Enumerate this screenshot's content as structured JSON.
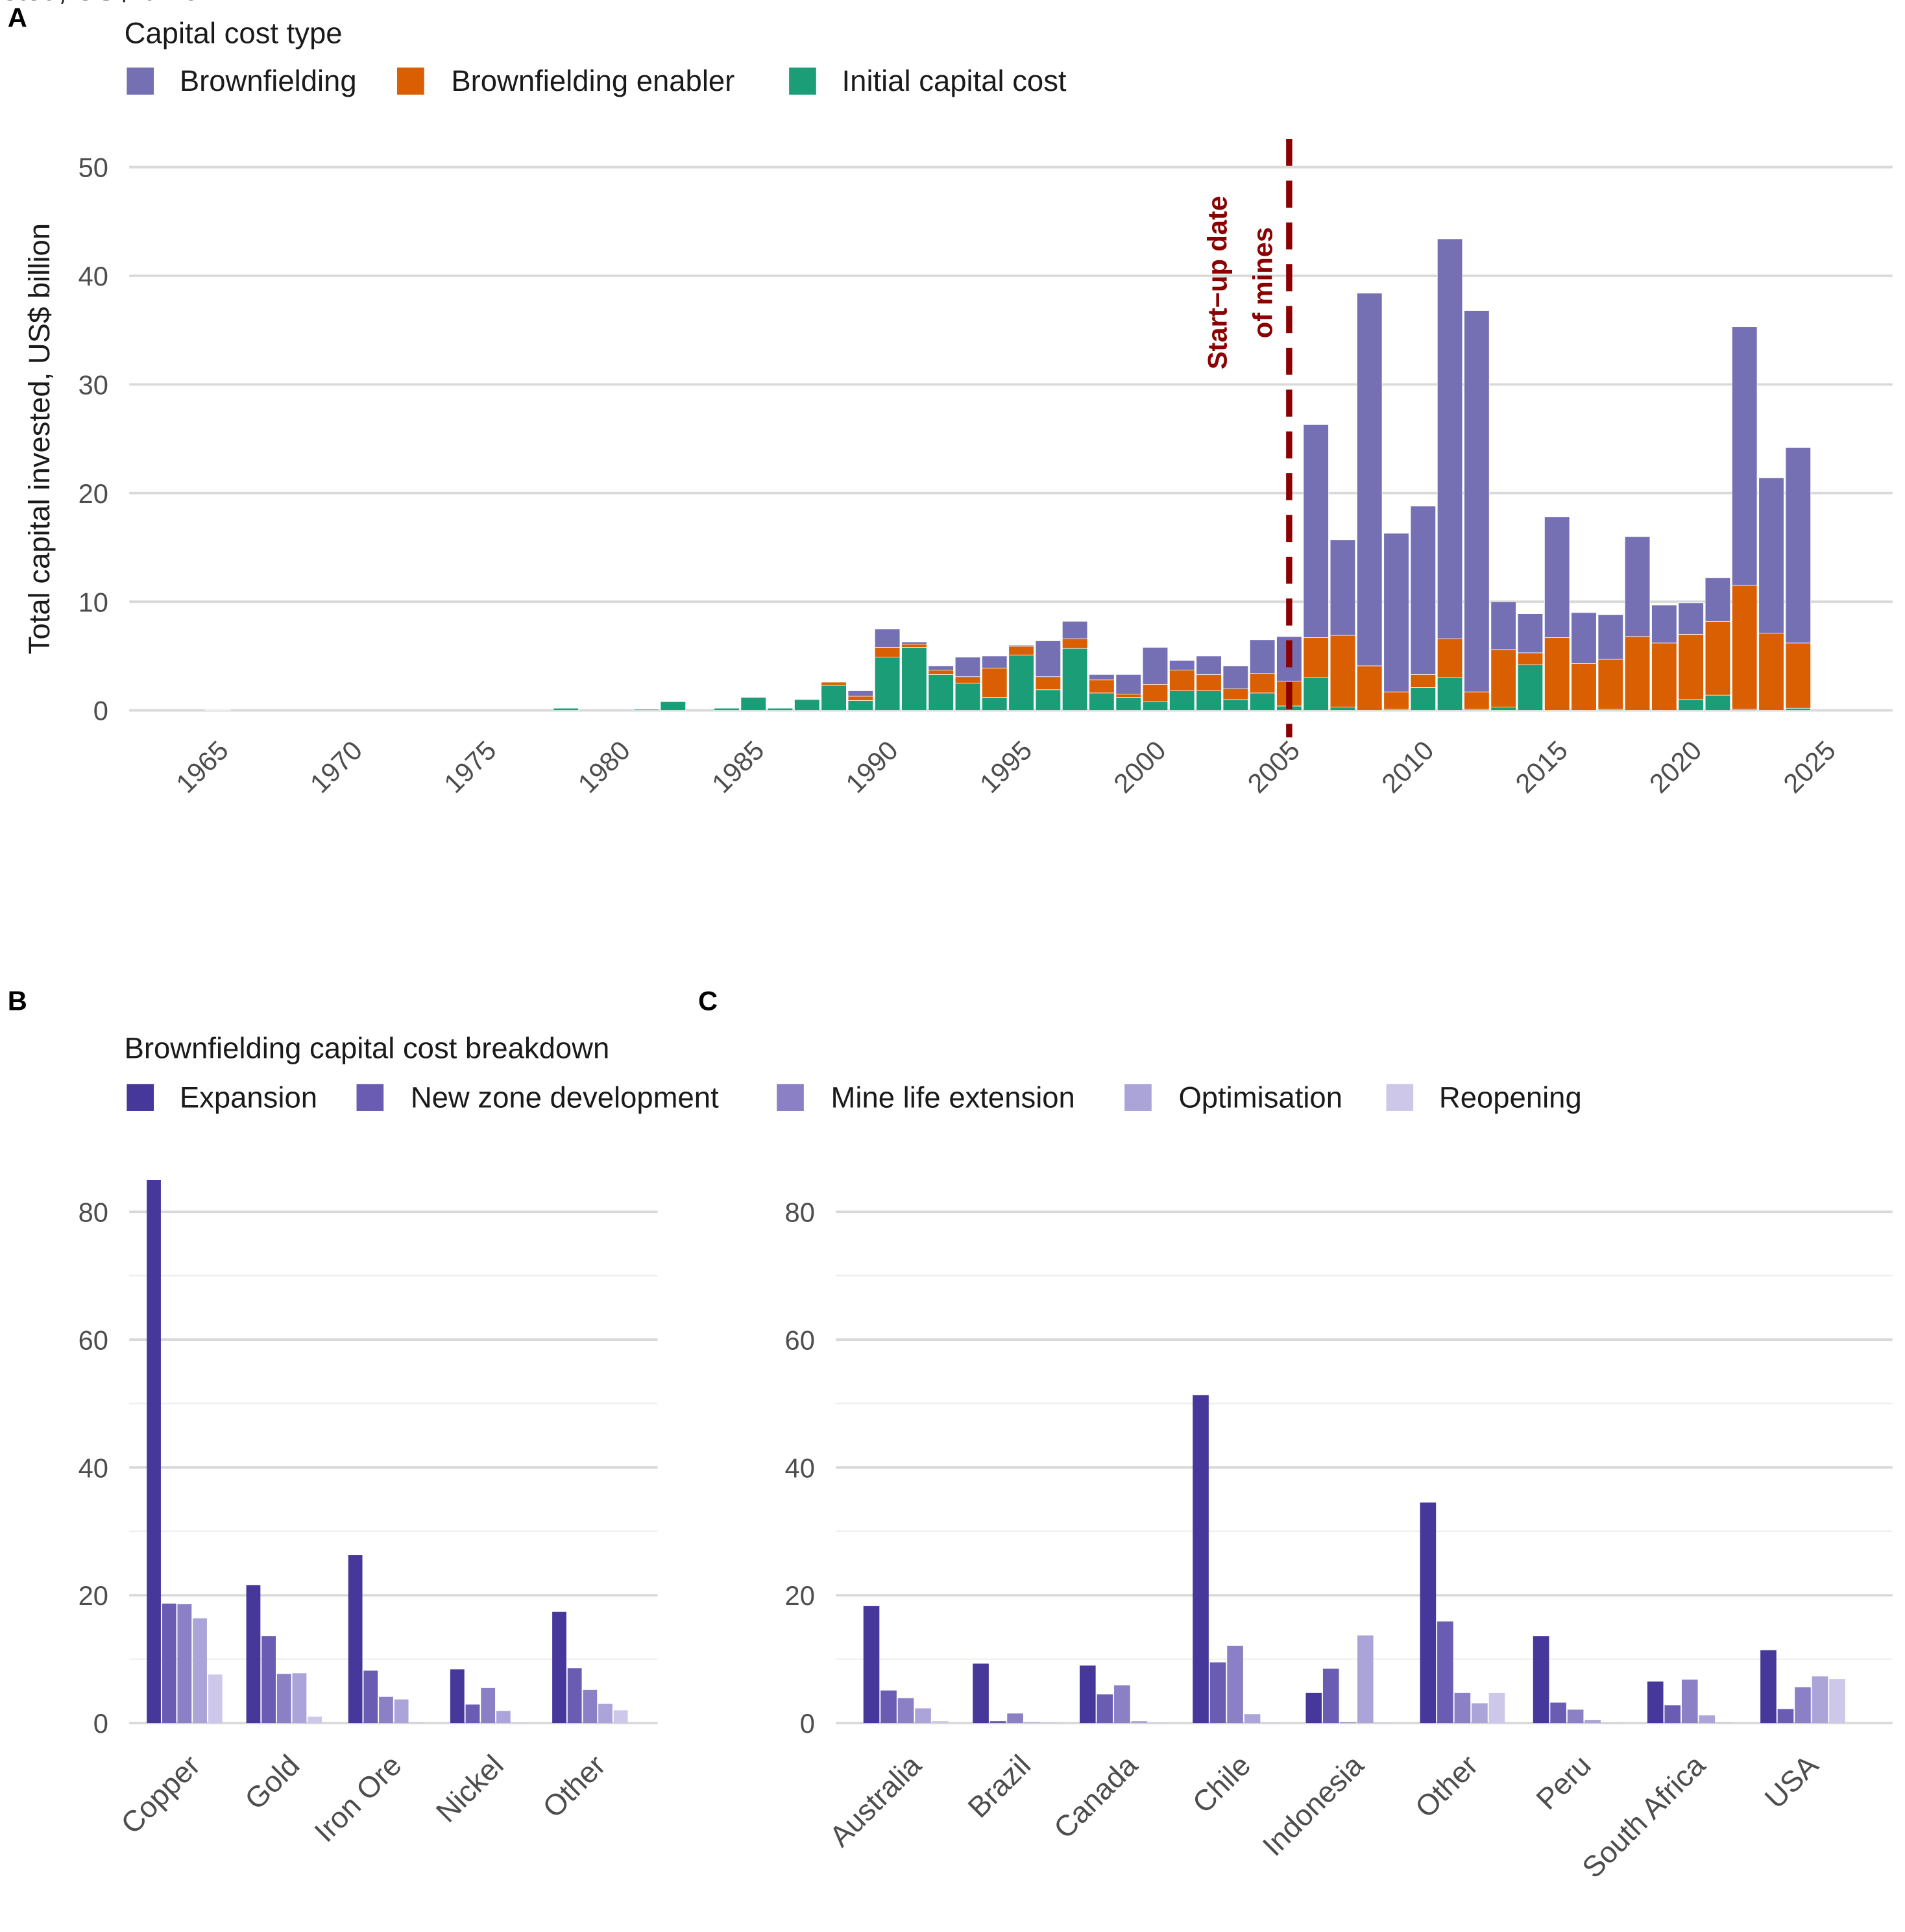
{
  "chart_data": [
    {
      "panel": "A",
      "type": "bar",
      "stacked": true,
      "legend_title": "Capital cost type",
      "legend_position": "top-left",
      "xlabel": "",
      "ylabel": "Total capital invested, US$ billion",
      "ylim": [
        0,
        50
      ],
      "yticks": [
        0,
        10,
        20,
        30,
        40,
        50
      ],
      "xticks": [
        1965,
        1970,
        1975,
        1980,
        1985,
        1990,
        1995,
        2000,
        2005,
        2010,
        2015,
        2020,
        2025
      ],
      "grid": true,
      "annotation": {
        "x": 2005,
        "lines": [
          "Start−up date",
          "of mines"
        ],
        "color": "#8b0000",
        "style": "dashed"
      },
      "x": [
        1965,
        1978,
        1981,
        1982,
        1984,
        1985,
        1986,
        1987,
        1988,
        1989,
        1990,
        1991,
        1992,
        1993,
        1994,
        1995,
        1996,
        1997,
        1998,
        1999,
        2000,
        2001,
        2002,
        2003,
        2004,
        2005,
        2006,
        2007,
        2008,
        2009,
        2010,
        2011,
        2012,
        2013,
        2014,
        2015,
        2016,
        2017,
        2018,
        2019,
        2020,
        2021,
        2022,
        2023,
        2024
      ],
      "series": [
        {
          "name": "Initial capital cost",
          "color": "#1b9e77",
          "values": [
            0.05,
            0.2,
            0.1,
            0.8,
            0.2,
            1.2,
            0.2,
            1.0,
            2.3,
            0.9,
            4.9,
            5.8,
            3.3,
            2.5,
            1.2,
            5.1,
            1.9,
            5.7,
            1.6,
            1.2,
            0.8,
            1.8,
            1.8,
            1.0,
            1.6,
            0.4,
            3.0,
            0.3,
            0.0,
            0.1,
            2.1,
            3.0,
            0.1,
            0.3,
            4.2,
            0.0,
            0.0,
            0.1,
            0.0,
            0.0,
            1.0,
            1.4,
            0.1,
            0.0,
            0.2
          ]
        },
        {
          "name": "Brownfielding enabler",
          "color": "#d95f02",
          "values": [
            0,
            0,
            0,
            0,
            0,
            0,
            0,
            0,
            0.3,
            0.4,
            0.9,
            0.3,
            0.4,
            0.6,
            2.7,
            0.8,
            1.2,
            0.9,
            1.2,
            0.3,
            1.6,
            1.9,
            1.5,
            1.0,
            1.8,
            2.3,
            3.7,
            6.6,
            4.1,
            1.6,
            1.2,
            3.6,
            1.6,
            5.3,
            1.1,
            6.7,
            4.3,
            4.6,
            6.8,
            6.2,
            6.0,
            6.8,
            11.4,
            7.1,
            6.0
          ]
        },
        {
          "name": "Brownfielding",
          "color": "#7570b3",
          "values": [
            0,
            0,
            0,
            0,
            0,
            0,
            0,
            0,
            0,
            0.5,
            1.7,
            0.2,
            0.4,
            1.8,
            1.1,
            0.1,
            3.3,
            1.6,
            0.5,
            1.8,
            3.4,
            0.9,
            1.7,
            2.1,
            3.1,
            4.1,
            19.6,
            8.8,
            34.3,
            14.6,
            15.5,
            36.8,
            35.1,
            4.4,
            3.6,
            11.1,
            4.7,
            4.1,
            9.2,
            3.5,
            2.9,
            4.0,
            23.8,
            14.3,
            18.0
          ]
        }
      ],
      "legend_order": [
        "Brownfielding",
        "Brownfielding enabler",
        "Initial capital cost"
      ]
    },
    {
      "panel": "B",
      "type": "bar",
      "grouped": true,
      "legend_title": "Brownfielding capital cost breakdown",
      "legend_position": "top-left",
      "ylabel": "Total capital invested, US$ billion",
      "ylim": [
        0,
        85
      ],
      "yticks": [
        0,
        20,
        40,
        60,
        80
      ],
      "grid": true,
      "categories": [
        "Copper",
        "Gold",
        "Iron Ore",
        "Nickel",
        "Other"
      ],
      "series": [
        {
          "name": "Expansion",
          "color": "#46379a",
          "values": [
            85.0,
            21.6,
            26.3,
            8.4,
            17.4
          ]
        },
        {
          "name": "New zone development",
          "color": "#6a5cb3",
          "values": [
            18.7,
            13.6,
            8.2,
            2.9,
            8.6
          ]
        },
        {
          "name": "Mine life extension",
          "color": "#8b80c6",
          "values": [
            18.6,
            7.7,
            4.1,
            5.5,
            5.2
          ]
        },
        {
          "name": "Optimisation",
          "color": "#aba4d8",
          "values": [
            16.4,
            7.8,
            3.7,
            1.9,
            3.0
          ]
        },
        {
          "name": "Reopening",
          "color": "#cdc8ea",
          "values": [
            7.6,
            1.0,
            0.1,
            0.0,
            2.0
          ]
        }
      ]
    },
    {
      "panel": "C",
      "type": "bar",
      "grouped": true,
      "ylabel": "Total capital invested, US$ billion",
      "ylim": [
        0,
        85
      ],
      "yticks": [
        0,
        20,
        40,
        60,
        80
      ],
      "grid": true,
      "categories": [
        "Australia",
        "Brazil",
        "Canada",
        "Chile",
        "Indonesia",
        "Other",
        "Peru",
        "South Africa",
        "USA"
      ],
      "series": [
        {
          "name": "Expansion",
          "color": "#46379a",
          "values": [
            18.3,
            9.3,
            9.0,
            51.3,
            4.7,
            34.5,
            13.6,
            6.5,
            11.4
          ]
        },
        {
          "name": "New zone development",
          "color": "#6a5cb3",
          "values": [
            5.1,
            0.3,
            4.5,
            9.5,
            8.5,
            15.9,
            3.2,
            2.8,
            2.2
          ]
        },
        {
          "name": "Mine life extension",
          "color": "#8b80c6",
          "values": [
            3.9,
            1.5,
            5.9,
            12.1,
            0.1,
            4.7,
            2.1,
            6.8,
            5.6
          ]
        },
        {
          "name": "Optimisation",
          "color": "#aba4d8",
          "values": [
            2.3,
            0.1,
            0.3,
            1.4,
            13.7,
            3.1,
            0.5,
            1.2,
            7.3
          ]
        },
        {
          "name": "Reopening",
          "color": "#cdc8ea",
          "values": [
            0.3,
            0.1,
            0.0,
            0.0,
            0.0,
            4.7,
            0.0,
            0.1,
            6.9
          ]
        }
      ]
    }
  ],
  "panel_labels": {
    "a": "A",
    "b": "B",
    "c": "C"
  }
}
